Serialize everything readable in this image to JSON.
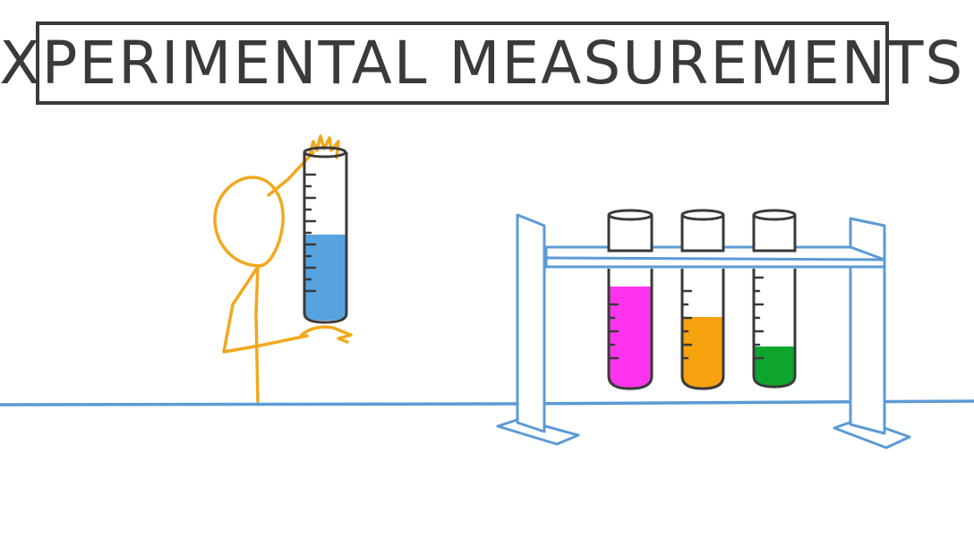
{
  "title": "EXPERIMENTAL MEASUREMENTS",
  "colors": {
    "ink": "#3a3a3a",
    "figure": "#f2a81d",
    "lab_blue": "#5b9bd5",
    "liquid_blue": "#56a3e0",
    "liquid_magenta": "#ff33ee",
    "liquid_orange": "#f7a20f",
    "liquid_green": "#0ea52e"
  },
  "scene": {
    "held_cylinder": {
      "liquid": "blue",
      "fill_level": 0.51
    },
    "rack_tubes": [
      {
        "liquid": "magenta",
        "fill_level": 0.86
      },
      {
        "liquid": "orange",
        "fill_level": 0.6
      },
      {
        "liquid": "green",
        "fill_level": 0.32
      }
    ]
  }
}
